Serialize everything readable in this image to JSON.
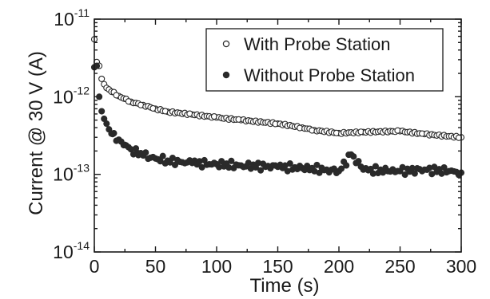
{
  "chart_data": {
    "type": "scatter",
    "title": "",
    "xlabel": "Time (s)",
    "ylabel": "Current @ 30 V (A)",
    "xlim": [
      0,
      300
    ],
    "ylim_exponents": [
      -14,
      -11
    ],
    "y_scale": "log",
    "x_ticks": [
      "0",
      "50",
      "100",
      "150",
      "200",
      "250",
      "300"
    ],
    "y_ticks": [
      {
        "base": "10",
        "exp": "-14"
      },
      {
        "base": "10",
        "exp": "-13"
      },
      {
        "base": "10",
        "exp": "-12"
      },
      {
        "base": "10",
        "exp": "-11"
      }
    ],
    "grid": false,
    "legend_position": "top-right",
    "series": [
      {
        "name": "With Probe Station",
        "marker": "open-circle",
        "x": [
          0,
          2,
          4,
          6,
          8,
          10,
          15,
          20,
          25,
          30,
          40,
          50,
          60,
          80,
          100,
          120,
          150,
          170,
          180,
          200,
          220,
          250,
          270,
          300
        ],
        "y": [
          5.5e-12,
          2.8e-12,
          2.5e-12,
          1.7e-12,
          1.45e-12,
          1.3e-12,
          1.15e-12,
          1.02e-12,
          9.4e-13,
          8.6e-13,
          7.8e-13,
          7e-13,
          6.4e-13,
          5.9e-13,
          5.4e-13,
          5e-13,
          4.5e-13,
          4e-13,
          3.7e-13,
          3.4e-13,
          3.5e-13,
          3.6e-13,
          3.3e-13,
          3e-13
        ]
      },
      {
        "name": "Without Probe Station",
        "marker": "filled-circle",
        "x": [
          0,
          2,
          4,
          6,
          8,
          10,
          12,
          15,
          20,
          25,
          30,
          35,
          40,
          50,
          60,
          70,
          80,
          100,
          120,
          150,
          170,
          190,
          200,
          210,
          220,
          240,
          250,
          270,
          290,
          300
        ],
        "y": [
          2.4e-12,
          2.5e-12,
          1e-12,
          6.5e-13,
          5.2e-13,
          4.5e-13,
          3.8e-13,
          3.3e-13,
          2.8e-13,
          2.4e-13,
          2.1e-13,
          1.9e-13,
          1.75e-13,
          1.6e-13,
          1.5e-13,
          1.45e-13,
          1.4e-13,
          1.35e-13,
          1.3e-13,
          1.25e-13,
          1.2e-13,
          1.15e-13,
          1.1e-13,
          1.8e-13,
          1.15e-13,
          1.1e-13,
          1.1e-13,
          1.15e-13,
          1.1e-13,
          1.05e-13
        ]
      }
    ]
  }
}
